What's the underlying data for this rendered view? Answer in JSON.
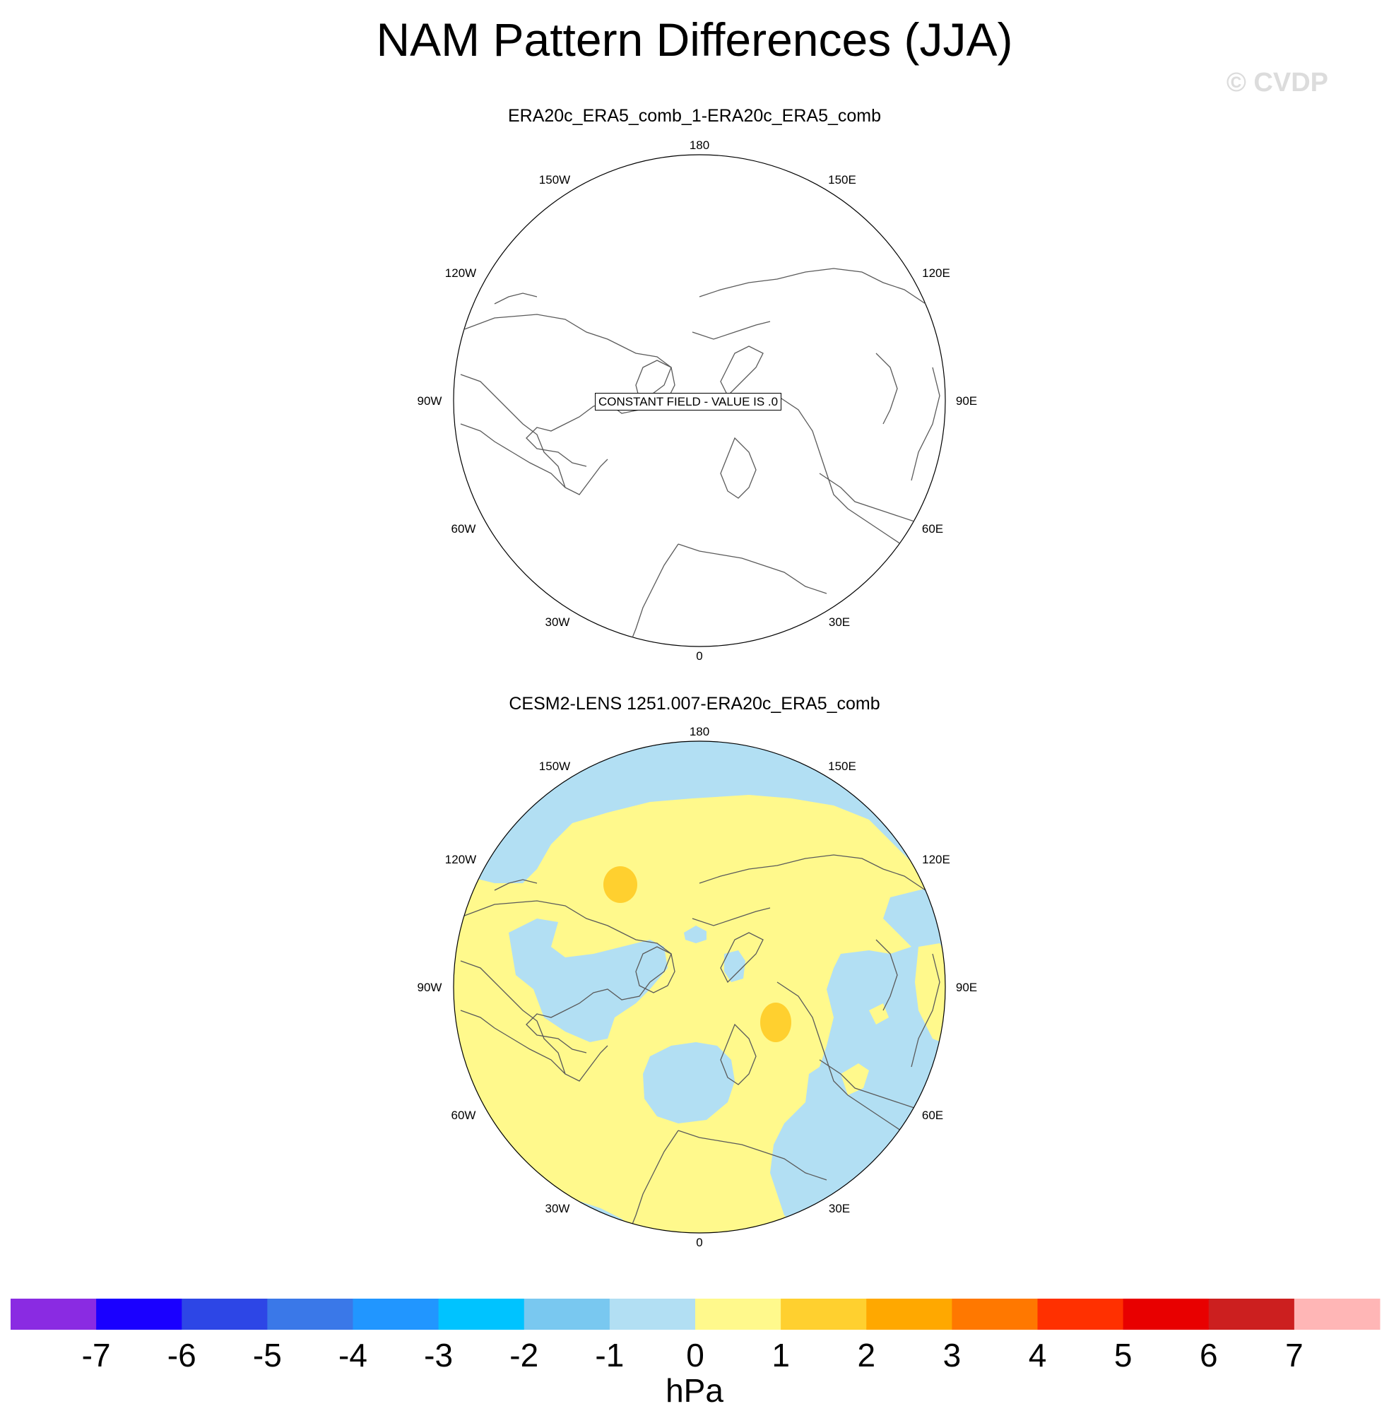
{
  "title": "NAM Pattern Differences (JJA)",
  "copyright": "© CVDP",
  "panels": [
    {
      "subtitle": "ERA20c_ERA5_comb_1-ERA20c_ERA5_comb",
      "annotation": "CONSTANT FIELD - VALUE IS .0",
      "filled": false
    },
    {
      "subtitle": "CESM2-LENS 1251.007-ERA20c_ERA5_comb",
      "annotation": "",
      "filled": true
    }
  ],
  "longitude_labels": {
    "top": "180",
    "upper_left": "150W",
    "upper_right": "150E",
    "mid_upper_left": "120W",
    "mid_upper_right": "120E",
    "left": "90W",
    "right": "90E",
    "mid_lower_left": "60W",
    "mid_lower_right": "60E",
    "lower_left": "30W",
    "lower_right": "30E",
    "bottom": "0"
  },
  "colorbar": {
    "colors": [
      "#8a2be2",
      "#1a00ff",
      "#2d46e6",
      "#3a78e8",
      "#2196ff",
      "#00c3ff",
      "#79c8f0",
      "#b2dff3",
      "#fff98c",
      "#ffd02f",
      "#ffa800",
      "#ff7800",
      "#ff3000",
      "#e80000",
      "#cc1f1f",
      "#ffb6b6"
    ],
    "labels": [
      "-7",
      "-6",
      "-5",
      "-4",
      "-3",
      "-2",
      "-1",
      "0",
      "1",
      "2",
      "3",
      "4",
      "5",
      "6",
      "7"
    ],
    "units": "hPa"
  },
  "field_colors": {
    "positive_small": "#fff98c",
    "negative_small": "#b2dff3",
    "positive_medium": "#ffd02f"
  }
}
